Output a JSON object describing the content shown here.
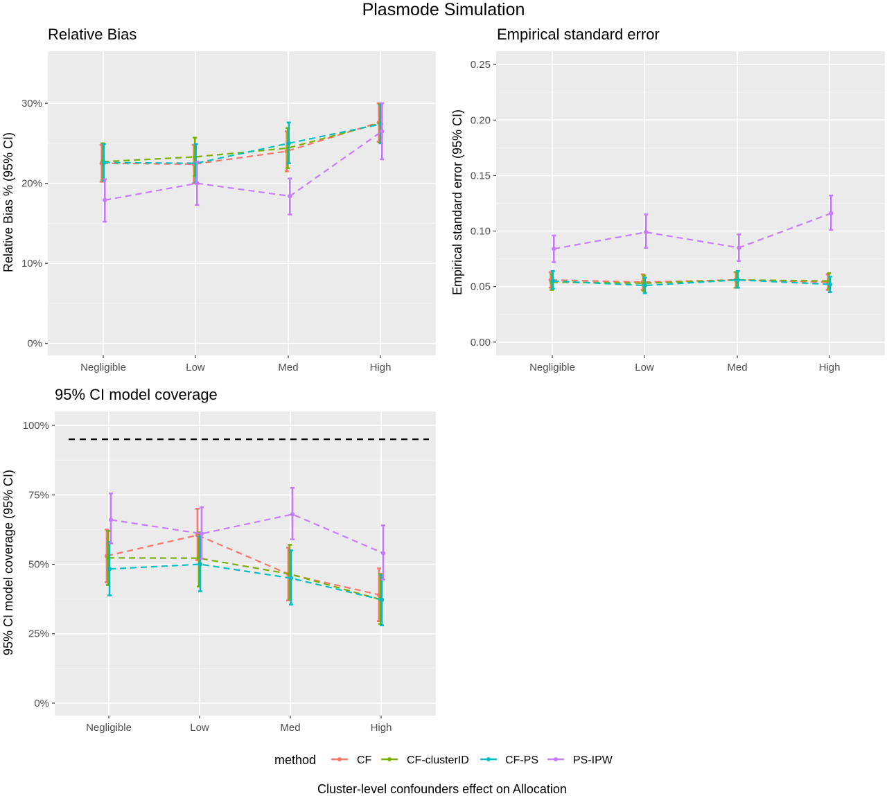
{
  "title": "Plasmode Simulation",
  "xlabel": "Cluster-level confounders effect on Allocation",
  "legend": {
    "title": "method",
    "placement": "bottom",
    "entries": [
      {
        "label": "CF",
        "color": "#F8766D"
      },
      {
        "label": "CF-clusterID",
        "color": "#7CAE00"
      },
      {
        "label": "CF-PS",
        "color": "#00BFC4"
      },
      {
        "label": "PS-IPW",
        "color": "#C77CFF"
      }
    ]
  },
  "chart_data": [
    {
      "type": "line",
      "title": "Relative Bias",
      "xlabel": "",
      "ylabel": "Relative Bias %  (95% CI)",
      "categories": [
        "Negligible",
        "Low",
        "Med",
        "High"
      ],
      "yticks": [
        0,
        10,
        20,
        30
      ],
      "ytick_labels": [
        "0%",
        "10%",
        "20%",
        "30%"
      ],
      "ylim": [
        -1.5,
        36.5
      ],
      "grid": true,
      "series": [
        {
          "name": "CF",
          "color": "#F8766D",
          "values": [
            22.5,
            22.4,
            24.0,
            27.6
          ],
          "lower": [
            20.2,
            20.0,
            21.5,
            25.2
          ],
          "upper": [
            24.8,
            24.8,
            26.5,
            30.0
          ]
        },
        {
          "name": "CF-clusterID",
          "color": "#7CAE00",
          "values": [
            22.7,
            23.3,
            24.4,
            27.5
          ],
          "lower": [
            20.4,
            20.9,
            21.9,
            25.1
          ],
          "upper": [
            25.0,
            25.7,
            26.9,
            29.9
          ]
        },
        {
          "name": "CF-PS",
          "color": "#00BFC4",
          "values": [
            22.6,
            22.5,
            25.0,
            27.4
          ],
          "lower": [
            20.3,
            20.1,
            22.5,
            25.0
          ],
          "upper": [
            24.9,
            24.9,
            27.6,
            29.8
          ]
        },
        {
          "name": "PS-IPW",
          "color": "#C77CFF",
          "values": [
            17.9,
            20.0,
            18.4,
            26.5
          ],
          "lower": [
            15.2,
            17.3,
            16.1,
            23.0
          ],
          "upper": [
            20.5,
            22.7,
            20.6,
            30.0
          ]
        }
      ]
    },
    {
      "type": "line",
      "title": "Empirical standard error",
      "xlabel": "",
      "ylabel": "Empirical standard error  (95% CI)",
      "categories": [
        "Negligible",
        "Low",
        "Med",
        "High"
      ],
      "yticks": [
        0,
        0.05,
        0.1,
        0.15,
        0.2,
        0.25
      ],
      "ytick_labels": [
        "0.00",
        "0.05",
        "0.10",
        "0.15",
        "0.20",
        "0.25"
      ],
      "ylim": [
        -0.012,
        0.262
      ],
      "grid": true,
      "series": [
        {
          "name": "CF",
          "color": "#F8766D",
          "values": [
            0.056,
            0.054,
            0.056,
            0.054
          ],
          "lower": [
            0.049,
            0.047,
            0.049,
            0.047
          ],
          "upper": [
            0.063,
            0.061,
            0.063,
            0.061
          ]
        },
        {
          "name": "CF-clusterID",
          "color": "#7CAE00",
          "values": [
            0.054,
            0.053,
            0.056,
            0.055
          ],
          "lower": [
            0.047,
            0.046,
            0.049,
            0.048
          ],
          "upper": [
            0.061,
            0.06,
            0.063,
            0.062
          ]
        },
        {
          "name": "CF-PS",
          "color": "#00BFC4",
          "values": [
            0.055,
            0.051,
            0.056,
            0.052
          ],
          "lower": [
            0.048,
            0.044,
            0.049,
            0.045
          ],
          "upper": [
            0.064,
            0.058,
            0.064,
            0.059
          ]
        },
        {
          "name": "PS-IPW",
          "color": "#C77CFF",
          "values": [
            0.084,
            0.099,
            0.085,
            0.116
          ],
          "lower": [
            0.072,
            0.085,
            0.073,
            0.101
          ],
          "upper": [
            0.096,
            0.115,
            0.097,
            0.132
          ]
        }
      ]
    },
    {
      "type": "line",
      "title": "95% CI model coverage",
      "xlabel": "",
      "ylabel": "95% CI model coverage (95% CI)",
      "categories": [
        "Negligible",
        "Low",
        "Med",
        "High"
      ],
      "yticks": [
        0,
        25,
        50,
        75,
        100
      ],
      "ytick_labels": [
        "0%",
        "25%",
        "50%",
        "75%",
        "100%"
      ],
      "ylim": [
        -4.5,
        105
      ],
      "reference_line": 95,
      "grid": true,
      "series": [
        {
          "name": "CF",
          "color": "#F8766D",
          "values": [
            53.0,
            60.5,
            46.5,
            39.0
          ],
          "lower": [
            43.5,
            51.5,
            37.0,
            29.5
          ],
          "upper": [
            62.5,
            70.0,
            56.0,
            48.5
          ]
        },
        {
          "name": "CF-clusterID",
          "color": "#7CAE00",
          "values": [
            52.3,
            52.2,
            46.5,
            37.3
          ],
          "lower": [
            42.5,
            42.0,
            37.3,
            28.5
          ],
          "upper": [
            62.0,
            61.5,
            57.0,
            46.5
          ]
        },
        {
          "name": "CF-PS",
          "color": "#00BFC4",
          "values": [
            48.3,
            50.0,
            45.0,
            37.2
          ],
          "lower": [
            38.8,
            40.3,
            35.5,
            28.0
          ],
          "upper": [
            58.0,
            60.0,
            55.0,
            46.0
          ]
        },
        {
          "name": "PS-IPW",
          "color": "#C77CFF",
          "values": [
            66.0,
            61.0,
            68.0,
            54.0
          ],
          "lower": [
            57.5,
            52.0,
            59.0,
            44.5
          ],
          "upper": [
            75.5,
            70.5,
            77.5,
            64.0
          ]
        }
      ]
    }
  ]
}
